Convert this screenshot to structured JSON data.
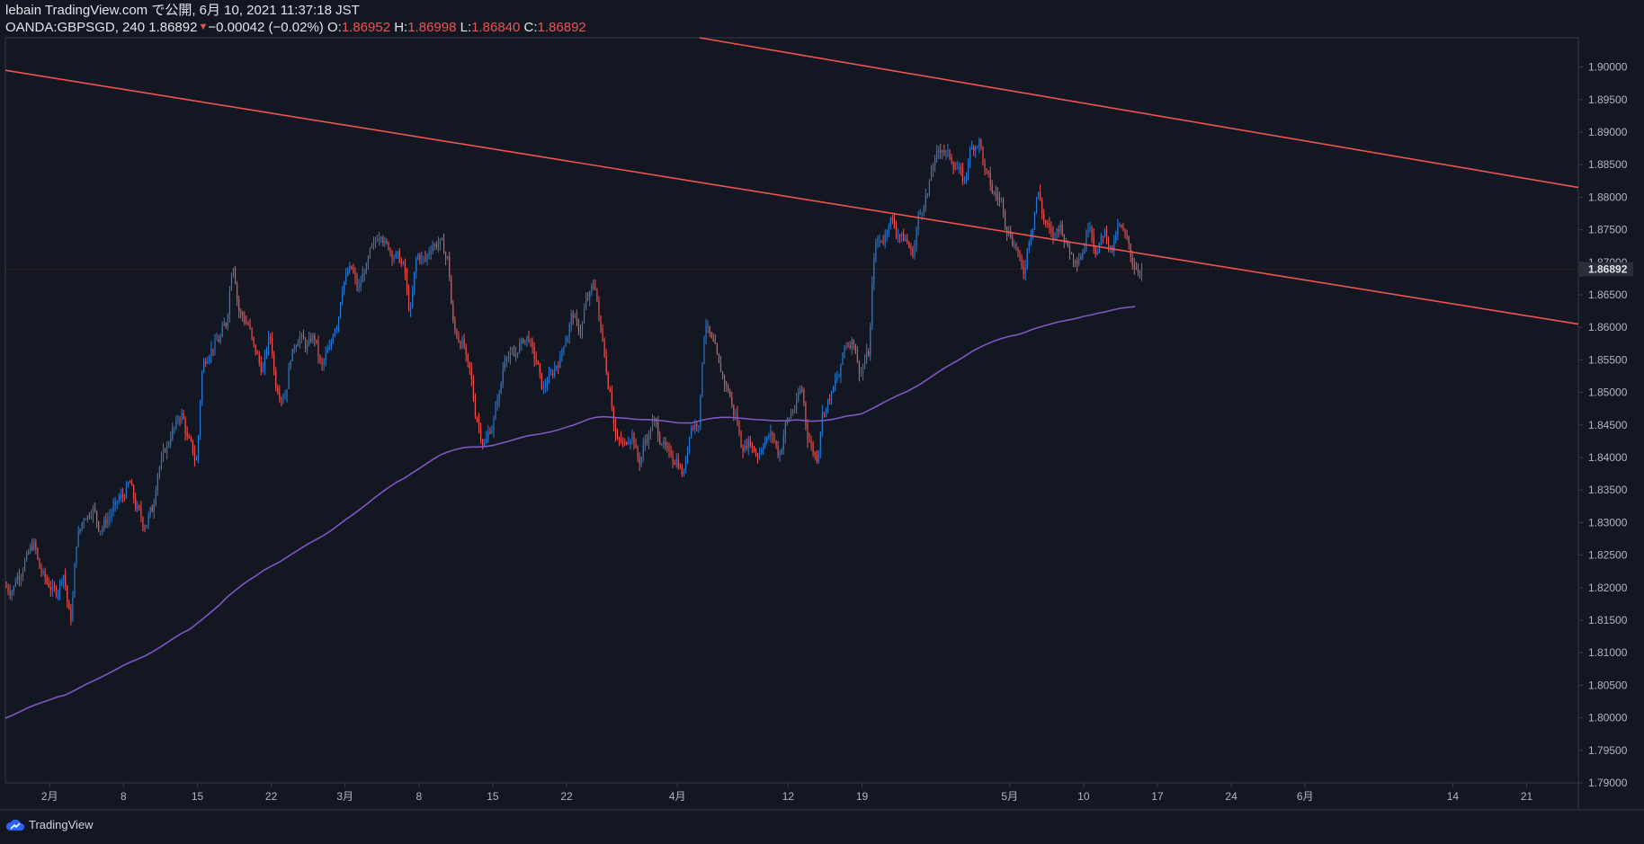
{
  "header": {
    "publish_line": "lebain TradingView.com で公開, 6月 10, 2021 11:37:18 JST",
    "symbol": "OANDA:GBPSGD, 240",
    "last": "1.86892",
    "change": "−0.00042 (−0.02%)",
    "o_label": "O:",
    "o_value": "1.86952",
    "h_label": "H:",
    "h_value": "1.86998",
    "l_label": "L:",
    "l_value": "1.86840",
    "c_label": "C:",
    "c_value": "1.86892"
  },
  "footer": {
    "brand": "TradingView"
  },
  "colors": {
    "background": "#131722",
    "up": "#2a7bd6",
    "down": "#ef5350",
    "ma": "#7e57c2",
    "trendline": "#ef5350",
    "axis_text": "#b2b5be",
    "border": "#363a45"
  },
  "chart_data": {
    "type": "candlestick",
    "symbol": "OANDA:GBPSGD",
    "interval": "240",
    "ylim": [
      1.79,
      1.9045
    ],
    "y_ticks": [
      "1.90000",
      "1.89500",
      "1.89000",
      "1.88500",
      "1.88000",
      "1.87500",
      "1.87000",
      "1.86500",
      "1.86000",
      "1.85500",
      "1.85000",
      "1.84500",
      "1.84000",
      "1.83500",
      "1.83000",
      "1.82500",
      "1.82000",
      "1.81500",
      "1.81000",
      "1.80500",
      "1.80000",
      "1.79500",
      "1.79000"
    ],
    "last_price_label": "1.86892",
    "x_ticks": [
      {
        "label": "2月",
        "t": 6
      },
      {
        "label": "8",
        "t": 16
      },
      {
        "label": "15",
        "t": 26
      },
      {
        "label": "22",
        "t": 36
      },
      {
        "label": "3月",
        "t": 46
      },
      {
        "label": "8",
        "t": 56
      },
      {
        "label": "15",
        "t": 66
      },
      {
        "label": "22",
        "t": 76
      },
      {
        "label": "4月",
        "t": 91
      },
      {
        "label": "12",
        "t": 106
      },
      {
        "label": "19",
        "t": 116
      },
      {
        "label": "5月",
        "t": 136
      },
      {
        "label": "10",
        "t": 146
      },
      {
        "label": "17",
        "t": 156
      },
      {
        "label": "24",
        "t": 166
      },
      {
        "label": "6月",
        "t": 176
      },
      {
        "label": "14",
        "t": 196
      },
      {
        "label": "21",
        "t": 206
      }
    ],
    "closes": [
      1.8195,
      1.822,
      1.8245,
      1.8265,
      1.8225,
      1.8205,
      1.8195,
      1.822,
      1.8155,
      1.828,
      1.831,
      1.832,
      1.829,
      1.8305,
      1.8325,
      1.834,
      1.836,
      1.832,
      1.8295,
      1.832,
      1.8385,
      1.8415,
      1.8445,
      1.8465,
      1.8425,
      1.8395,
      1.8545,
      1.8565,
      1.858,
      1.8605,
      1.8695,
      1.862,
      1.8605,
      1.8565,
      1.8535,
      1.8585,
      1.8505,
      1.8495,
      1.856,
      1.8585,
      1.857,
      1.8585,
      1.854,
      1.8565,
      1.8605,
      1.867,
      1.869,
      1.866,
      1.869,
      1.8725,
      1.8745,
      1.8725,
      1.871,
      1.8695,
      1.8625,
      1.871,
      1.8705,
      1.8725,
      1.873,
      1.8705,
      1.8595,
      1.8575,
      1.8535,
      1.846,
      1.842,
      1.8445,
      1.8495,
      1.856,
      1.8555,
      1.8575,
      1.8585,
      1.855,
      1.8505,
      1.8525,
      1.8545,
      1.858,
      1.862,
      1.8595,
      1.8645,
      1.8665,
      1.8585,
      1.8505,
      1.8425,
      1.842,
      1.8435,
      1.8395,
      1.843,
      1.8455,
      1.8425,
      1.8405,
      1.8395,
      1.8375,
      1.8445,
      1.8455,
      1.8605,
      1.8575,
      1.8535,
      1.8505,
      1.8465,
      1.8415,
      1.8425,
      1.8405,
      1.8425,
      1.8435,
      1.8405,
      1.8455,
      1.8475,
      1.8505,
      1.8425,
      1.84,
      1.8475,
      1.8495,
      1.8525,
      1.8575,
      1.858,
      1.853,
      1.856,
      1.8725,
      1.8735,
      1.8765,
      1.8745,
      1.8735,
      1.8715,
      1.8775,
      1.8805,
      1.8855,
      1.8875,
      1.8865,
      1.8845,
      1.8825,
      1.8875,
      1.8885,
      1.8835,
      1.8805,
      1.8795,
      1.8745,
      1.8725,
      1.8685,
      1.8745,
      1.8805,
      1.876,
      1.874,
      1.8755,
      1.8725,
      1.8705,
      1.8715,
      1.876,
      1.8715,
      1.8745,
      1.872,
      1.8755,
      1.8735,
      1.8695,
      1.8689
    ]
  }
}
